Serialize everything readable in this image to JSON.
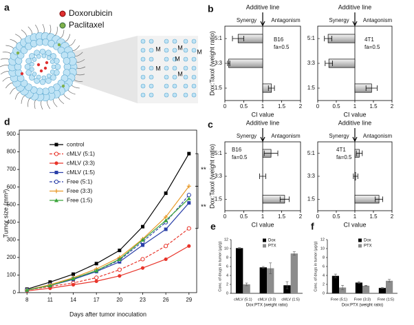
{
  "diagram": {
    "panel_label": "a",
    "legend": [
      "Doxorubicin",
      "Paclitaxel"
    ],
    "membrane_label": "M"
  },
  "chart_data": [
    {
      "type": "hbar",
      "panel_label": "b",
      "y_label": "Dox:Taxol (weight ratio)",
      "x_label": "CI value",
      "reference_line": 1,
      "reference_label": "Additive line",
      "left_label": "Synergy",
      "right_label": "Antagonism",
      "annotations": [
        "B16",
        "fa=0.5"
      ],
      "categories": [
        "5:1",
        "3:3",
        "1:5"
      ],
      "values": [
        0.35,
        0.1,
        1.23
      ],
      "errors": [
        0.15,
        0.03,
        0.08
      ],
      "color": "#c8c8c8",
      "xlim": [
        0,
        2
      ],
      "xticks": [
        0,
        0.5,
        1,
        1.5,
        2
      ]
    },
    {
      "type": "hbar",
      "x_label": "CI value",
      "reference_line": 1,
      "reference_label": "Additive line",
      "left_label": "Synergy",
      "right_label": "Antagonism",
      "annotations": [
        "4T1",
        "fa=0.5"
      ],
      "categories": [
        "5:1",
        "3:3",
        "1:5"
      ],
      "values": [
        0.28,
        0.3,
        1.45
      ],
      "errors": [
        0.1,
        0.1,
        0.15
      ],
      "color": "#c8c8c8",
      "xlim": [
        0,
        2
      ],
      "xticks": [
        0,
        0.5,
        1,
        1.5,
        2
      ]
    },
    {
      "type": "hbar",
      "panel_label": "c",
      "y_label": "Dox:Taxol (weight ratio)",
      "x_label": "CI value",
      "reference_line": 1,
      "reference_label": "Additive line",
      "left_label": "Synergy",
      "right_label": "Antagonism",
      "annotations": [
        "B16",
        "fa=0.5"
      ],
      "categories": [
        "5:1",
        "3:3",
        "1:5"
      ],
      "values": [
        1.22,
        1.0,
        1.58
      ],
      "errors": [
        0.18,
        0.08,
        0.12
      ],
      "color": "#c8c8c8",
      "xlim": [
        0,
        2
      ],
      "xticks": [
        0,
        0.5,
        1,
        1.5,
        2
      ]
    },
    {
      "type": "hbar",
      "x_label": "CI value",
      "reference_line": 1,
      "reference_label": "Additive line",
      "left_label": "Synergy",
      "right_label": "Antagonism",
      "annotations": [
        "4T1",
        "fa=0.5"
      ],
      "categories": [
        "5:1",
        "3:3",
        "1:5"
      ],
      "values": [
        1.12,
        1.02,
        1.65
      ],
      "errors": [
        0.08,
        0.06,
        0.1
      ],
      "color": "#c8c8c8",
      "xlim": [
        0,
        2
      ],
      "xticks": [
        0,
        0.5,
        1,
        1.5,
        2
      ]
    },
    {
      "type": "line",
      "panel_label": "d",
      "x_label": "Days after tumor inoculation",
      "y_label": "Tumor size (mm³)",
      "significance": [
        "**",
        "**"
      ],
      "x": [
        8,
        11,
        14,
        17,
        20,
        23,
        26,
        29
      ],
      "xlim": [
        7,
        30
      ],
      "xticks": [
        8,
        11,
        14,
        17,
        20,
        23,
        26,
        29
      ],
      "ylim": [
        0,
        900
      ],
      "yticks": [
        0,
        100,
        200,
        300,
        400,
        500,
        600,
        700,
        800,
        900
      ],
      "series": [
        {
          "name": "control",
          "color": "#000000",
          "marker": "square",
          "dashed": false,
          "values": [
            20,
            60,
            105,
            165,
            240,
            375,
            565,
            790
          ]
        },
        {
          "name": "cMLV (5:1)",
          "color": "#e8342a",
          "marker": "circle-open",
          "dashed": true,
          "values": [
            15,
            35,
            55,
            85,
            130,
            190,
            265,
            365
          ]
        },
        {
          "name": "cMLV (3:3)",
          "color": "#e8342a",
          "marker": "circle",
          "dashed": false,
          "values": [
            10,
            25,
            45,
            65,
            95,
            140,
            190,
            265
          ]
        },
        {
          "name": "cMLV (1:5)",
          "color": "#2a3fa8",
          "marker": "square",
          "dashed": false,
          "values": [
            15,
            40,
            75,
            120,
            175,
            270,
            360,
            510
          ]
        },
        {
          "name": "Free (5:1)",
          "color": "#2a3fa8",
          "marker": "circle-open",
          "dashed": true,
          "values": [
            15,
            45,
            80,
            125,
            185,
            290,
            400,
            555
          ]
        },
        {
          "name": "Free (3:3)",
          "color": "#e89a2a",
          "marker": "plus",
          "dashed": false,
          "values": [
            15,
            45,
            85,
            135,
            200,
            305,
            430,
            605
          ]
        },
        {
          "name": "Free (1:5)",
          "color": "#3aa53a",
          "marker": "triangle",
          "dashed": false,
          "values": [
            15,
            40,
            80,
            125,
            190,
            300,
            410,
            535
          ]
        }
      ]
    },
    {
      "type": "groupbar",
      "panel_label": "e",
      "x_label": "Dox:PTX (weight ratio)",
      "y_label": "Conc. of drugs in tumor (μg/g)",
      "categories": [
        "cMLV (5:1)",
        "cMLV (3:3)",
        "cMLV (1:5)"
      ],
      "ylim": [
        0,
        12
      ],
      "yticks": [
        0,
        2,
        4,
        6,
        8,
        10,
        12
      ],
      "series": [
        {
          "name": "Dox",
          "color": "#000000",
          "values": [
            10.1,
            5.8,
            1.8
          ],
          "errors": [
            0.1,
            0.2,
            0.8
          ]
        },
        {
          "name": "PTX",
          "color": "#8c8c8c",
          "values": [
            2.0,
            5.6,
            8.9
          ],
          "errors": [
            0.3,
            1.2,
            0.4
          ]
        }
      ]
    },
    {
      "type": "groupbar",
      "panel_label": "f",
      "x_label": "Dox:PTX (weight ratio)",
      "y_label": "Conc. of drugs in tumor (μg/g)",
      "categories": [
        "Free (5:1)",
        "Free (3:3)",
        "Free (1:5)"
      ],
      "ylim": [
        0,
        12
      ],
      "yticks": [
        0,
        2,
        4,
        6,
        8,
        10,
        12
      ],
      "series": [
        {
          "name": "Dox",
          "color": "#000000",
          "values": [
            3.9,
            2.4,
            1.2
          ],
          "errors": [
            0.4,
            0.2,
            0.1
          ]
        },
        {
          "name": "PTX",
          "color": "#8c8c8c",
          "values": [
            1.3,
            1.7,
            2.8
          ],
          "errors": [
            0.5,
            0.1,
            0.3
          ]
        }
      ]
    }
  ]
}
